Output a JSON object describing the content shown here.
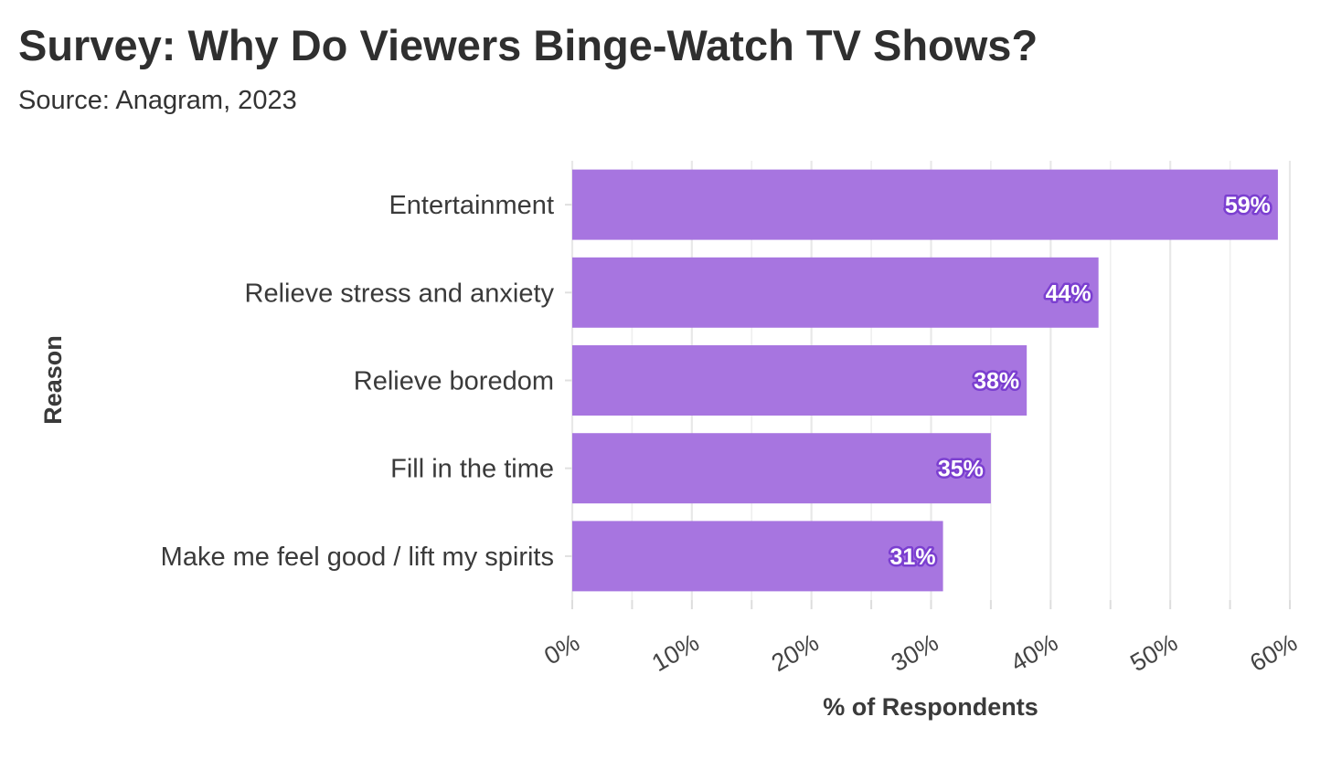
{
  "chart_data": {
    "type": "bar",
    "orientation": "horizontal",
    "title": "Survey: Why Do Viewers Binge-Watch TV Shows?",
    "subtitle": "Source: Anagram, 2023",
    "categories": [
      "Entertainment",
      "Relieve stress and anxiety",
      "Relieve boredom",
      "Fill in the time",
      "Make me feel good / lift my spirits"
    ],
    "values": [
      59,
      44,
      38,
      35,
      31
    ],
    "data_labels": [
      "59%",
      "44%",
      "38%",
      "35%",
      "31%"
    ],
    "xlabel": "% of Respondents",
    "ylabel": "Reason",
    "xlim": [
      0,
      60
    ],
    "x_ticks": [
      0,
      10,
      20,
      30,
      40,
      50,
      60
    ],
    "x_tick_labels": [
      "0%",
      "10%",
      "20%",
      "30%",
      "40%",
      "50%",
      "60%"
    ],
    "grid": true,
    "bar_color": "#a775e0",
    "label_outline_color": "#7b3fd0"
  }
}
